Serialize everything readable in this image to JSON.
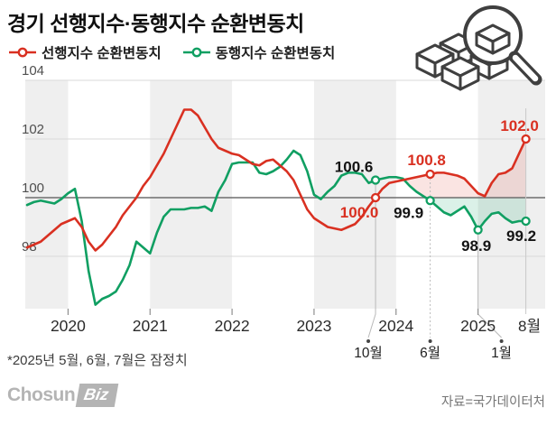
{
  "title": "경기 선행지수·동행지수 순환변동치",
  "legend": [
    {
      "label": "선행지수 순환변동치",
      "color": "#d93021"
    },
    {
      "label": "동행지수 순환변동치",
      "color": "#109f62"
    }
  ],
  "footnote": "*2025년 5월, 6월, 7월은 잠정치",
  "source": "자료=국가데이터처",
  "logo": {
    "text_plain": "Chosun",
    "text_boxed": "Biz"
  },
  "icon": {
    "name": "magnifier-over-boxes",
    "stroke": "#3f3f3f"
  },
  "chart_data": {
    "type": "line",
    "title": "경기 선행지수·동행지수 순환변동치",
    "x_unit": "month",
    "x_start": "2019-07",
    "x_end": "2025-08",
    "ylim": [
      96,
      104
    ],
    "y_ticks": [
      98,
      100,
      102,
      104
    ],
    "baseline_value": 100,
    "year_labels": [
      "2020",
      "2021",
      "2022",
      "2023",
      "2024",
      "2025"
    ],
    "end_label": "8월",
    "grid_band_years_shaded": [
      2019,
      2021,
      2023,
      2025
    ],
    "band_color": "#efefef",
    "fill_above_color": "rgba(217,48,33,0.13)",
    "fill_below_color": "rgba(16,159,98,0.15)",
    "series": [
      {
        "name": "선행지수 순환변동치",
        "color": "#d93021",
        "values": [
          98.3,
          98.4,
          98.5,
          98.7,
          98.9,
          99.1,
          99.2,
          99.3,
          99.0,
          98.5,
          98.2,
          98.4,
          98.7,
          99.0,
          99.4,
          99.7,
          100.0,
          100.4,
          100.7,
          101.1,
          101.5,
          102.0,
          102.5,
          103.0,
          103.0,
          102.8,
          102.4,
          102.0,
          101.7,
          101.6,
          101.5,
          101.45,
          101.3,
          101.15,
          101.1,
          101.25,
          101.3,
          101.1,
          100.9,
          100.6,
          100.1,
          99.6,
          99.3,
          99.15,
          99.0,
          98.95,
          98.9,
          99.0,
          99.1,
          99.35,
          99.7,
          100.0,
          100.3,
          100.5,
          100.55,
          100.6,
          100.65,
          100.7,
          100.75,
          100.8,
          100.85,
          100.85,
          100.8,
          100.75,
          100.65,
          100.4,
          100.15,
          100.05,
          100.5,
          100.8,
          100.85,
          101.0,
          101.5,
          102.0
        ]
      },
      {
        "name": "동행지수 순환변동치",
        "color": "#109f62",
        "values": [
          99.75,
          99.85,
          99.9,
          99.85,
          99.8,
          99.95,
          100.15,
          100.3,
          99.2,
          97.5,
          96.35,
          96.55,
          96.65,
          96.8,
          97.2,
          97.7,
          98.5,
          98.3,
          98.1,
          98.8,
          99.35,
          99.6,
          99.6,
          99.6,
          99.65,
          99.65,
          99.7,
          99.55,
          100.2,
          100.6,
          101.15,
          101.2,
          101.2,
          101.2,
          100.85,
          100.8,
          100.9,
          101.05,
          101.3,
          101.6,
          101.45,
          100.9,
          100.1,
          99.95,
          100.2,
          100.4,
          100.75,
          100.85,
          100.85,
          100.8,
          100.5,
          100.6,
          100.65,
          100.7,
          100.7,
          100.65,
          100.4,
          100.2,
          100.05,
          99.9,
          99.7,
          99.5,
          99.4,
          99.55,
          99.7,
          99.35,
          98.9,
          99.2,
          99.45,
          99.5,
          99.3,
          99.15,
          99.2,
          99.2
        ]
      }
    ],
    "annotations": [
      {
        "series": 0,
        "month_index": 51,
        "date": "2023-10",
        "value": 100.0,
        "label": "100.0"
      },
      {
        "series": 1,
        "month_index": 51,
        "date": "2023-10",
        "value": 100.6,
        "label": "100.6"
      },
      {
        "series": 0,
        "month_index": 59,
        "date": "2024-06",
        "value": 100.8,
        "label": "100.8"
      },
      {
        "series": 1,
        "month_index": 59,
        "date": "2024-06",
        "value": 99.9,
        "label": "99.9"
      },
      {
        "series": 1,
        "month_index": 66,
        "date": "2025-01",
        "value": 98.9,
        "label": "98.9"
      },
      {
        "series": 0,
        "month_index": 73,
        "date": "2025-08",
        "value": 102.0,
        "label": "102.0"
      },
      {
        "series": 1,
        "month_index": 73,
        "date": "2025-08",
        "value": 99.2,
        "label": "99.2"
      }
    ],
    "callouts": [
      {
        "label": "10월",
        "month_index": 51
      },
      {
        "label": "6월",
        "month_index": 59
      },
      {
        "label": "1월",
        "month_index": 66
      }
    ]
  }
}
